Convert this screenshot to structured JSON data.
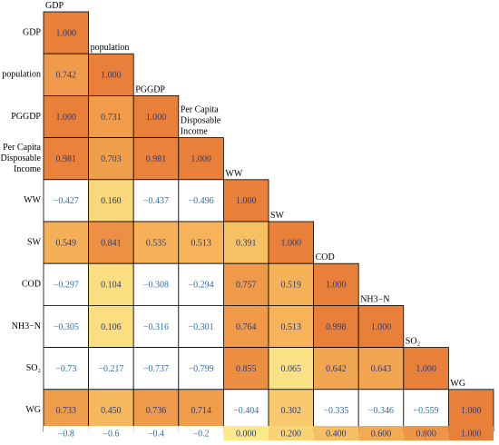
{
  "chart_data": {
    "type": "heatmap",
    "variables": [
      "GDP",
      "population",
      "PGGDP",
      "Per Capita Disposable Income",
      "WW",
      "SW",
      "COD",
      "NH3−N",
      "SO2",
      "WG"
    ],
    "row_labels": [
      [
        "GDP"
      ],
      [
        "population"
      ],
      [
        "PGGDP"
      ],
      [
        "Per Capita",
        "Disposable",
        "Income"
      ],
      [
        "WW"
      ],
      [
        "SW"
      ],
      [
        "COD"
      ],
      [
        "NH3−N"
      ],
      [
        "SO₂"
      ],
      [
        "WG"
      ]
    ],
    "column_labels": [
      [
        "GDP"
      ],
      [
        "population"
      ],
      [
        "PGGDP"
      ],
      [
        "Per Capita",
        "Disposable",
        "Income"
      ],
      [
        "WW"
      ],
      [
        "SW"
      ],
      [
        "COD"
      ],
      [
        "NH3−N"
      ],
      [
        "SO₂"
      ],
      [
        "WG"
      ]
    ],
    "values": [
      [
        "1.000"
      ],
      [
        "0.742",
        "1.000"
      ],
      [
        "1.000",
        "0.731",
        "1.000"
      ],
      [
        "0.981",
        "0.703",
        "0.981",
        "1.000"
      ],
      [
        "−0.427",
        "0.160",
        "−0.437",
        "−0.496",
        "1.000"
      ],
      [
        "0.549",
        "0.841",
        "0.535",
        "0.513",
        "0.391",
        "1.000"
      ],
      [
        "−0.297",
        "0.104",
        "−0.308",
        "−0.294",
        "0.757",
        "0.519",
        "1.000"
      ],
      [
        "−0.305",
        "0.106",
        "−0.316",
        "−0.301",
        "0.764",
        "0.513",
        "0.998",
        "1.000"
      ],
      [
        "−0.73",
        "−0.217",
        "−0.737",
        "−0.799",
        "0.855",
        "0.065",
        "0.642",
        "0.643",
        "1.000"
      ],
      [
        "0.733",
        "0.450",
        "0.736",
        "0.714",
        "−0.404",
        "0.302",
        "−0.335",
        "−0.346",
        "−0.559",
        "1.000"
      ]
    ],
    "color_scale": {
      "range": [
        -0.8,
        1.0
      ],
      "ticks": [
        "−0.8",
        "−0.6",
        "−0.4",
        "−0.2",
        "0.000",
        "0.200",
        "0.400",
        "0.600",
        "0.800",
        "1.000"
      ],
      "negative_color": "#ffffff",
      "low_color": "#fbe98a",
      "mid_color": "#f6b45a",
      "high_color": "#e8803a",
      "positive_text_color": "#2b3a7a",
      "negative_text_color": "#2f6db0"
    }
  }
}
